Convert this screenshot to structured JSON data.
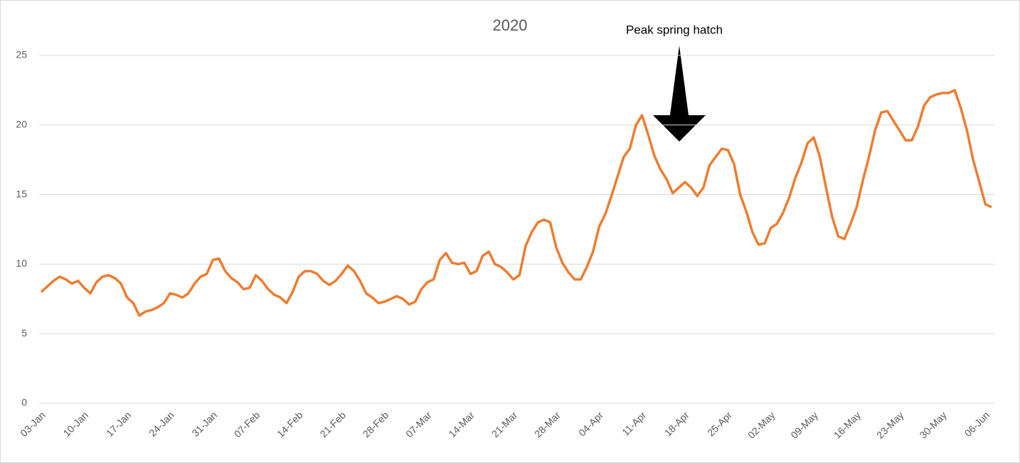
{
  "chart_data": {
    "type": "line",
    "title": "2020",
    "annotation": "Peak spring hatch",
    "categories": [
      "03-Jan",
      null,
      null,
      null,
      null,
      null,
      null,
      "10-Jan",
      null,
      null,
      null,
      null,
      null,
      null,
      "17-Jan",
      null,
      null,
      null,
      null,
      null,
      null,
      "24-Jan",
      null,
      null,
      null,
      null,
      null,
      null,
      "31-Jan",
      null,
      null,
      null,
      null,
      null,
      null,
      "07-Feb",
      null,
      null,
      null,
      null,
      null,
      null,
      "14-Feb",
      null,
      null,
      null,
      null,
      null,
      null,
      "21-Feb",
      null,
      null,
      null,
      null,
      null,
      null,
      "28-Feb",
      null,
      null,
      null,
      null,
      null,
      null,
      "07-Mar",
      null,
      null,
      null,
      null,
      null,
      null,
      "14-Mar",
      null,
      null,
      null,
      null,
      null,
      null,
      "21-Mar",
      null,
      null,
      null,
      null,
      null,
      null,
      "28-Mar",
      null,
      null,
      null,
      null,
      null,
      null,
      "04-Apr",
      null,
      null,
      null,
      null,
      null,
      null,
      "11-Apr",
      null,
      null,
      null,
      null,
      null,
      null,
      "18-Apr",
      null,
      null,
      null,
      null,
      null,
      null,
      "25-Apr",
      null,
      null,
      null,
      null,
      null,
      null,
      "02-May",
      null,
      null,
      null,
      null,
      null,
      null,
      "09-May",
      null,
      null,
      null,
      null,
      null,
      null,
      "16-May",
      null,
      null,
      null,
      null,
      null,
      null,
      "23-May",
      null,
      null,
      null,
      null,
      null,
      null,
      "30-May",
      null,
      null,
      null,
      null,
      null,
      null,
      "06-Jun",
      null
    ],
    "values": [
      8.0,
      8.4,
      8.8,
      9.1,
      8.9,
      8.6,
      8.8,
      8.3,
      7.9,
      8.7,
      9.1,
      9.2,
      9.0,
      8.6,
      7.6,
      7.2,
      6.3,
      6.6,
      6.7,
      6.9,
      7.2,
      7.9,
      7.8,
      7.6,
      7.9,
      8.6,
      9.1,
      9.3,
      10.3,
      10.4,
      9.5,
      9.0,
      8.7,
      8.2,
      8.3,
      9.2,
      8.8,
      8.2,
      7.8,
      7.6,
      7.2,
      8.0,
      9.1,
      9.5,
      9.5,
      9.3,
      8.8,
      8.5,
      8.8,
      9.3,
      9.9,
      9.5,
      8.8,
      7.9,
      7.6,
      7.2,
      7.3,
      7.5,
      7.7,
      7.5,
      7.1,
      7.3,
      8.2,
      8.7,
      8.9,
      10.3,
      10.8,
      10.1,
      10.0,
      10.1,
      9.3,
      9.5,
      10.6,
      10.9,
      10.0,
      9.8,
      9.4,
      8.9,
      9.2,
      11.3,
      12.3,
      13.0,
      13.2,
      13.0,
      11.2,
      10.1,
      9.4,
      8.9,
      8.9,
      9.8,
      10.9,
      12.7,
      13.6,
      14.9,
      16.3,
      17.7,
      18.3,
      20.0,
      20.7,
      19.3,
      17.8,
      16.8,
      16.1,
      15.1,
      15.5,
      15.9,
      15.5,
      14.9,
      15.5,
      17.1,
      17.7,
      18.3,
      18.2,
      17.2,
      15.0,
      13.8,
      12.3,
      11.4,
      11.5,
      12.6,
      12.9,
      13.7,
      14.8,
      16.2,
      17.3,
      18.7,
      19.1,
      17.7,
      15.5,
      13.4,
      12.0,
      11.8,
      12.9,
      14.1,
      16.0,
      17.7,
      19.6,
      20.9,
      21.0,
      20.3,
      19.6,
      18.9,
      18.9,
      19.9,
      21.4,
      22.0,
      22.2,
      22.3,
      22.3,
      22.5,
      21.2,
      19.6,
      17.5,
      15.9,
      14.3,
      14.1
    ],
    "color": "#ed7d31",
    "ylim": [
      0,
      25
    ],
    "yticks": [
      0,
      5,
      10,
      15,
      20,
      25
    ],
    "grid": true
  }
}
